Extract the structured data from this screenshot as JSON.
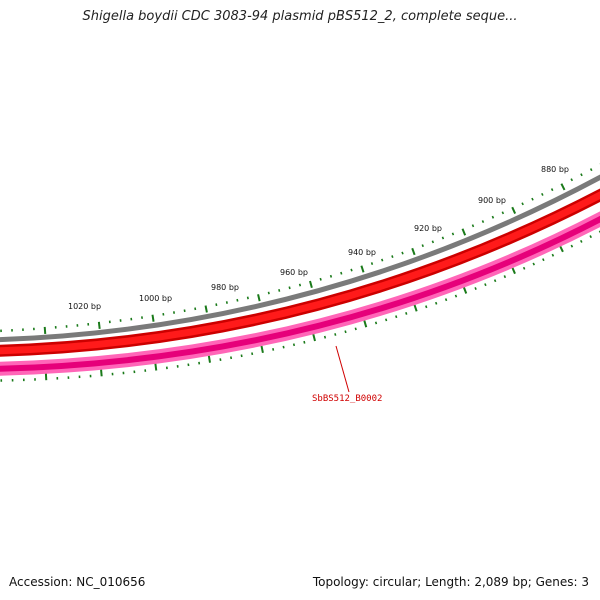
{
  "header": {
    "title": "Shigella boydii CDC 3083-94 plasmid pBS512_2, complete seque..."
  },
  "footer": {
    "accession": "Accession: NC_010656",
    "topology": "Topology: circular; Length: 2,089 bp; Genes: 3"
  },
  "map": {
    "tick_labels": [
      "880 bp",
      "900 bp",
      "920 bp",
      "940 bp",
      "960 bp",
      "980 bp",
      "1000 bp",
      "1020 bp"
    ],
    "gene_label": "SbBS512_B0002",
    "colors": {
      "backbone": "#808080",
      "forward_cds": "#ff0000",
      "forward_cds_edge": "#cc0000",
      "reverse_cds": "#ff1493",
      "reverse_cds_edge": "#cc0066",
      "ticks": "#1a7a1a",
      "gene_label": "#d00000"
    }
  }
}
